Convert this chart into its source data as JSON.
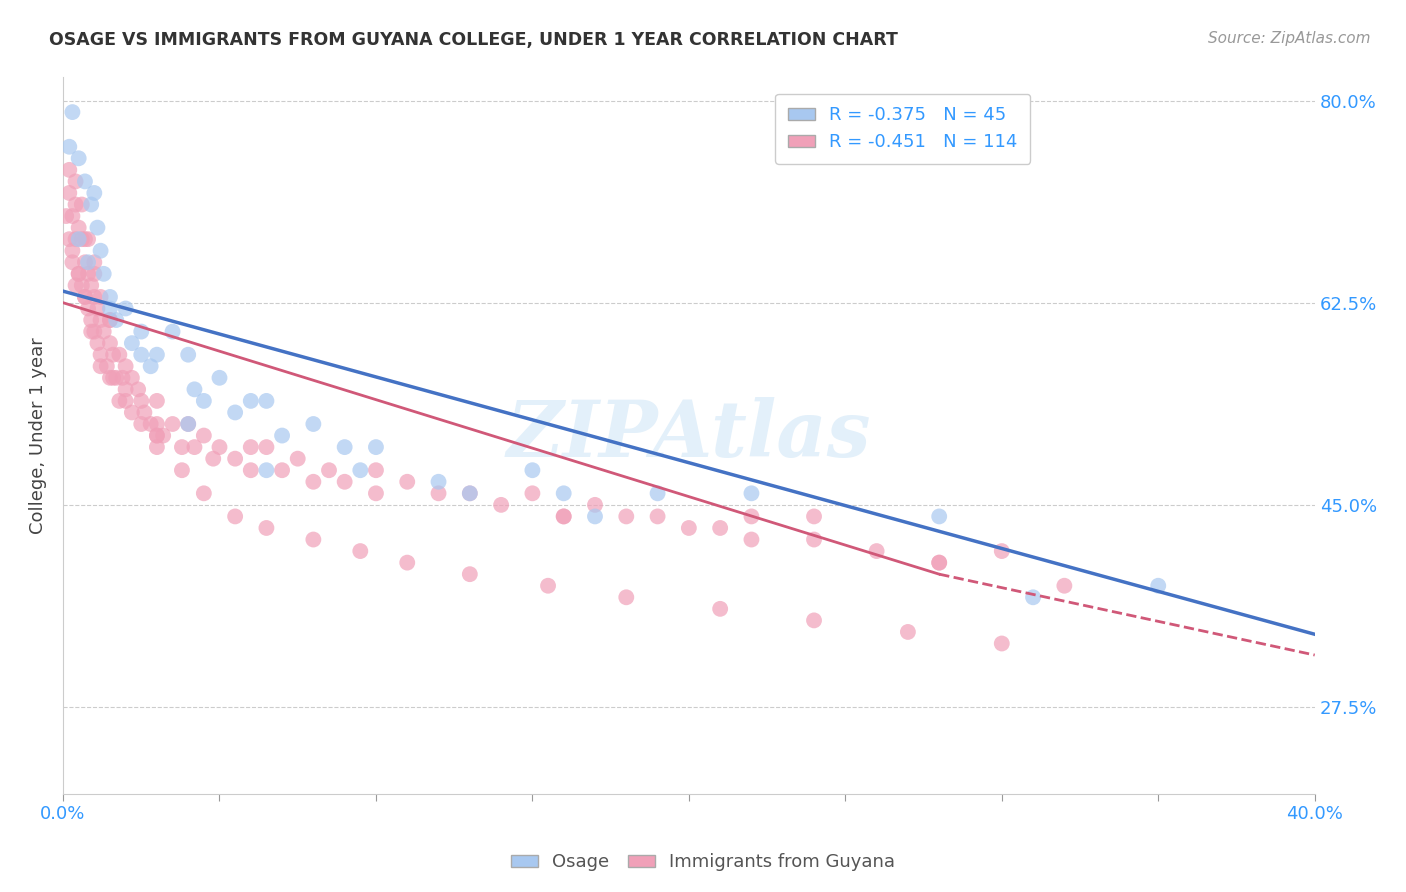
{
  "title": "OSAGE VS IMMIGRANTS FROM GUYANA COLLEGE, UNDER 1 YEAR CORRELATION CHART",
  "source": "Source: ZipAtlas.com",
  "ylabel": "College, Under 1 year",
  "legend_label1": "Osage",
  "legend_label2": "Immigrants from Guyana",
  "r1": -0.375,
  "n1": 45,
  "r2": -0.451,
  "n2": 114,
  "color_osage": "#a8c8f0",
  "color_guyana": "#f0a0b8",
  "color_trendline_osage": "#4472c4",
  "color_trendline_guyana": "#d05878",
  "background_color": "#ffffff",
  "grid_color": "#cccccc",
  "xlim": [
    0.0,
    0.4
  ],
  "ylim": [
    0.2,
    0.82
  ],
  "trendline_osage": [
    0.0,
    0.4,
    0.635,
    0.338
  ],
  "trendline_guyana_solid": [
    0.0,
    0.28,
    0.625,
    0.39
  ],
  "trendline_guyana_dashed": [
    0.28,
    0.4,
    0.39,
    0.32
  ],
  "osage_x": [
    0.002,
    0.003,
    0.005,
    0.007,
    0.009,
    0.01,
    0.011,
    0.012,
    0.013,
    0.015,
    0.017,
    0.02,
    0.022,
    0.025,
    0.028,
    0.03,
    0.035,
    0.04,
    0.042,
    0.045,
    0.05,
    0.055,
    0.065,
    0.07,
    0.08,
    0.09,
    0.1,
    0.12,
    0.13,
    0.15,
    0.17,
    0.19,
    0.06,
    0.31,
    0.005,
    0.008,
    0.015,
    0.025,
    0.04,
    0.065,
    0.095,
    0.16,
    0.22,
    0.28,
    0.35
  ],
  "osage_y": [
    0.76,
    0.79,
    0.75,
    0.73,
    0.71,
    0.72,
    0.69,
    0.67,
    0.65,
    0.63,
    0.61,
    0.62,
    0.59,
    0.6,
    0.57,
    0.58,
    0.6,
    0.58,
    0.55,
    0.54,
    0.56,
    0.53,
    0.54,
    0.51,
    0.52,
    0.5,
    0.5,
    0.47,
    0.46,
    0.48,
    0.44,
    0.46,
    0.54,
    0.37,
    0.68,
    0.66,
    0.62,
    0.58,
    0.52,
    0.48,
    0.48,
    0.46,
    0.46,
    0.44,
    0.38
  ],
  "guyana_x": [
    0.001,
    0.002,
    0.002,
    0.003,
    0.003,
    0.004,
    0.004,
    0.005,
    0.005,
    0.006,
    0.006,
    0.007,
    0.007,
    0.008,
    0.008,
    0.009,
    0.009,
    0.01,
    0.01,
    0.011,
    0.011,
    0.012,
    0.012,
    0.013,
    0.014,
    0.015,
    0.015,
    0.016,
    0.017,
    0.018,
    0.019,
    0.02,
    0.022,
    0.024,
    0.026,
    0.028,
    0.03,
    0.032,
    0.035,
    0.038,
    0.04,
    0.042,
    0.045,
    0.048,
    0.05,
    0.055,
    0.06,
    0.065,
    0.07,
    0.075,
    0.08,
    0.085,
    0.09,
    0.1,
    0.11,
    0.12,
    0.13,
    0.14,
    0.15,
    0.16,
    0.17,
    0.18,
    0.19,
    0.2,
    0.21,
    0.22,
    0.24,
    0.26,
    0.28,
    0.3,
    0.004,
    0.006,
    0.008,
    0.01,
    0.012,
    0.015,
    0.018,
    0.022,
    0.025,
    0.03,
    0.003,
    0.005,
    0.007,
    0.009,
    0.012,
    0.016,
    0.02,
    0.025,
    0.03,
    0.038,
    0.045,
    0.055,
    0.065,
    0.08,
    0.095,
    0.11,
    0.13,
    0.155,
    0.18,
    0.21,
    0.24,
    0.27,
    0.3,
    0.002,
    0.004,
    0.007,
    0.01,
    0.015,
    0.02,
    0.03,
    0.22,
    0.28,
    0.03,
    0.06,
    0.1,
    0.16,
    0.24,
    0.32
  ],
  "guyana_y": [
    0.7,
    0.72,
    0.68,
    0.66,
    0.7,
    0.68,
    0.64,
    0.69,
    0.65,
    0.68,
    0.64,
    0.66,
    0.63,
    0.65,
    0.62,
    0.64,
    0.61,
    0.63,
    0.6,
    0.62,
    0.59,
    0.61,
    0.58,
    0.6,
    0.57,
    0.59,
    0.56,
    0.58,
    0.56,
    0.54,
    0.56,
    0.55,
    0.53,
    0.55,
    0.53,
    0.52,
    0.54,
    0.51,
    0.52,
    0.5,
    0.52,
    0.5,
    0.51,
    0.49,
    0.5,
    0.49,
    0.48,
    0.5,
    0.48,
    0.49,
    0.47,
    0.48,
    0.47,
    0.46,
    0.47,
    0.46,
    0.46,
    0.45,
    0.46,
    0.44,
    0.45,
    0.44,
    0.44,
    0.43,
    0.43,
    0.42,
    0.42,
    0.41,
    0.4,
    0.41,
    0.73,
    0.71,
    0.68,
    0.66,
    0.63,
    0.61,
    0.58,
    0.56,
    0.54,
    0.51,
    0.67,
    0.65,
    0.63,
    0.6,
    0.57,
    0.56,
    0.54,
    0.52,
    0.5,
    0.48,
    0.46,
    0.44,
    0.43,
    0.42,
    0.41,
    0.4,
    0.39,
    0.38,
    0.37,
    0.36,
    0.35,
    0.34,
    0.33,
    0.74,
    0.71,
    0.68,
    0.65,
    0.61,
    0.57,
    0.51,
    0.44,
    0.4,
    0.52,
    0.5,
    0.48,
    0.44,
    0.44,
    0.38
  ]
}
